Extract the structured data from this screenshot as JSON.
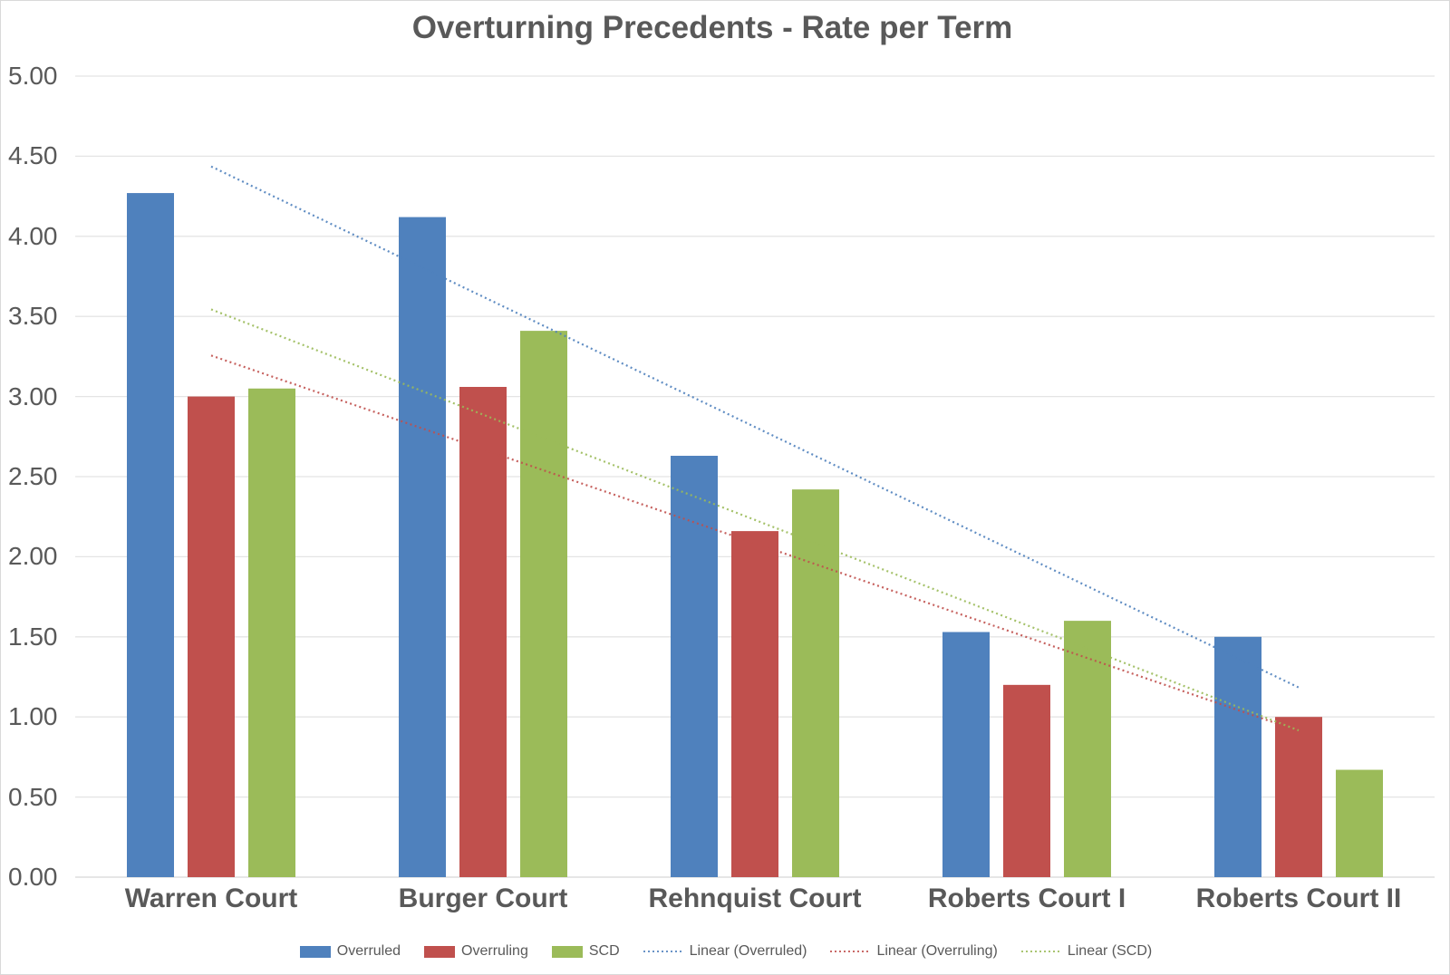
{
  "chart_data": {
    "type": "bar",
    "title": "Overturning Precedents - Rate per Term",
    "categories": [
      "Warren Court",
      "Burger Court",
      "Rehnquist Court",
      "Roberts Court I",
      "Roberts Court II"
    ],
    "series": [
      {
        "name": "Overruled",
        "color": "#4F81BD",
        "values": [
          4.27,
          4.12,
          2.63,
          1.53,
          1.5
        ]
      },
      {
        "name": "Overruling",
        "color": "#C0504D",
        "values": [
          3.0,
          3.06,
          2.16,
          1.2,
          1.0
        ]
      },
      {
        "name": "SCD",
        "color": "#9BBB59",
        "values": [
          3.05,
          3.41,
          2.42,
          1.6,
          0.67
        ]
      }
    ],
    "trendlines": [
      {
        "name": "Linear (Overruled)",
        "series_index": 0,
        "color": "#4F81BD",
        "style": "dotted"
      },
      {
        "name": "Linear (Overruling)",
        "series_index": 1,
        "color": "#C0504D",
        "style": "dotted"
      },
      {
        "name": "Linear (SCD)",
        "series_index": 2,
        "color": "#9BBB59",
        "style": "dotted"
      }
    ],
    "xlabel": "",
    "ylabel": "",
    "ylim": [
      0,
      5
    ],
    "ytick_step": 0.5,
    "ytick_labels": [
      "5.00",
      "4.50",
      "4.00",
      "3.50",
      "3.00",
      "2.50",
      "2.00",
      "1.50",
      "1.00",
      "0.50",
      "0.00"
    ],
    "grid": true,
    "gridline_color": "#e4e4e4",
    "axis_line_color": "#d6d6d6",
    "text_color": "#595959",
    "legend_position": "bottom"
  }
}
